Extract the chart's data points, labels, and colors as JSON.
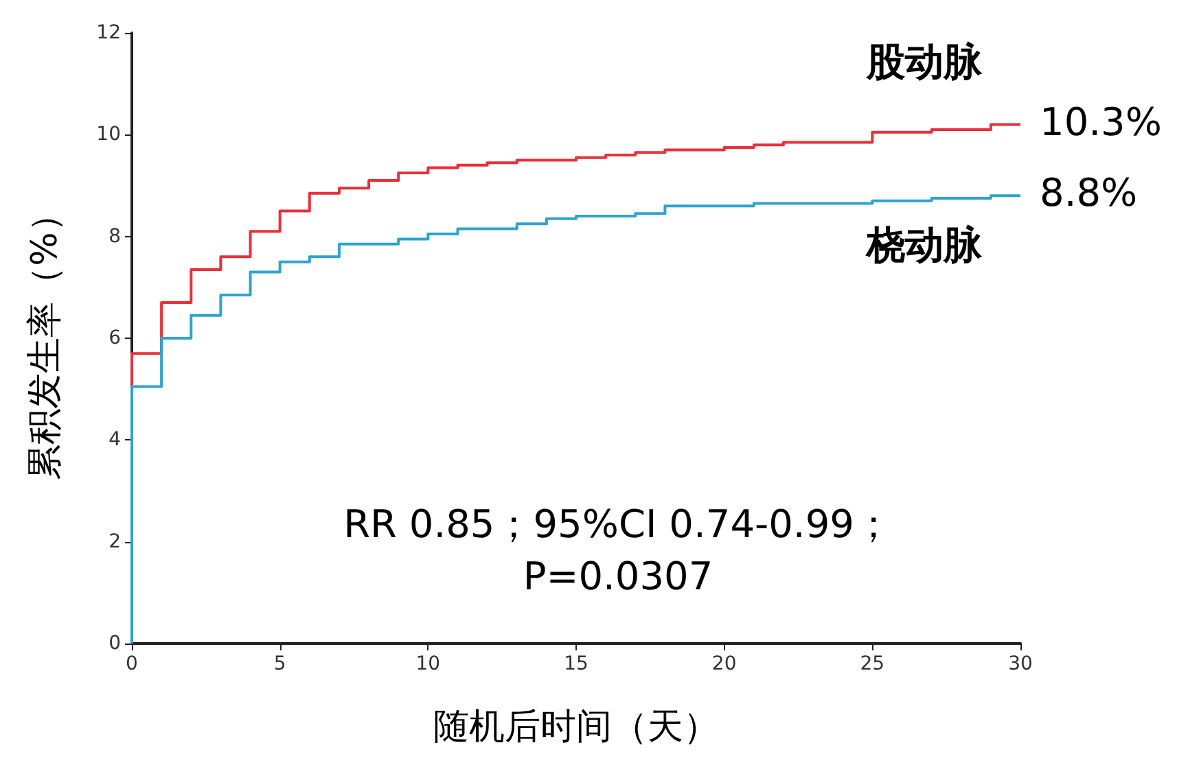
{
  "chart_data": {
    "type": "step",
    "xlabel": "随机后时间（天）",
    "ylabel": "累积发生率（%）",
    "xlim": [
      0,
      30
    ],
    "xticks": [
      0,
      5,
      10,
      15,
      20,
      25,
      30
    ],
    "ylim": [
      0,
      12
    ],
    "yticks": [
      0,
      2,
      4,
      6,
      8,
      10,
      12
    ],
    "grid": false,
    "legend": false,
    "marker": "none",
    "line_style": "solid",
    "series": [
      {
        "name": "股动脉",
        "color": "#e8303a",
        "x": [
          0,
          0,
          1,
          2,
          3,
          4,
          5,
          6,
          7,
          8,
          9,
          10,
          11,
          12,
          13,
          15,
          16,
          17,
          18,
          20,
          21,
          22,
          25,
          27,
          29,
          30
        ],
        "values": [
          0,
          5.7,
          6.7,
          7.35,
          7.6,
          8.1,
          8.5,
          8.85,
          8.95,
          9.1,
          9.25,
          9.35,
          9.4,
          9.45,
          9.5,
          9.55,
          9.6,
          9.65,
          9.7,
          9.75,
          9.8,
          9.85,
          10.05,
          10.1,
          10.2,
          10.2
        ]
      },
      {
        "name": "桡动脉",
        "color": "#2ea3d0",
        "x": [
          0,
          0,
          1,
          2,
          3,
          4,
          5,
          6,
          7,
          9,
          10,
          11,
          13,
          14,
          15,
          17,
          18,
          21,
          25,
          27,
          29,
          30
        ],
        "values": [
          0,
          5.05,
          6.0,
          6.45,
          6.85,
          7.3,
          7.5,
          7.6,
          7.85,
          7.95,
          8.05,
          8.15,
          8.25,
          8.35,
          8.4,
          8.45,
          8.6,
          8.65,
          8.7,
          8.75,
          8.8,
          8.8
        ]
      }
    ],
    "annotations": [
      {
        "text": "10.3%",
        "x": 30,
        "y": 10.2
      },
      {
        "text": "8.8%",
        "x": 30,
        "y": 8.8
      },
      "RR 0.85；95%CI 0.74-0.99；",
      "P=0.0307"
    ]
  }
}
